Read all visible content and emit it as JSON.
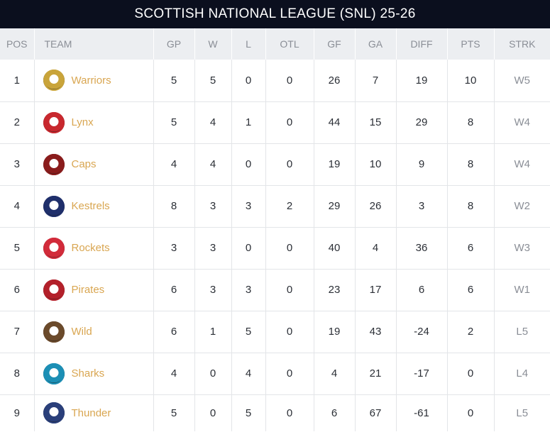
{
  "title": "SCOTTISH NATIONAL LEAGUE (SNL) 25-26",
  "headers": {
    "pos": "POS",
    "team": "TEAM",
    "gp": "GP",
    "w": "W",
    "l": "L",
    "otl": "OTL",
    "gf": "GF",
    "ga": "GA",
    "diff": "DIFF",
    "pts": "PTS",
    "strk": "STRK"
  },
  "rows": [
    {
      "pos": "1",
      "team": "Warriors",
      "gp": "5",
      "w": "5",
      "l": "0",
      "otl": "0",
      "gf": "26",
      "ga": "7",
      "diff": "19",
      "pts": "10",
      "strk": "W5",
      "logo_color": "#c9a43a",
      "logo_icon": "warriors-logo-icon"
    },
    {
      "pos": "2",
      "team": "Lynx",
      "gp": "5",
      "w": "4",
      "l": "1",
      "otl": "0",
      "gf": "44",
      "ga": "15",
      "diff": "29",
      "pts": "8",
      "strk": "W4",
      "logo_color": "#c8282e",
      "logo_icon": "lynx-logo-icon"
    },
    {
      "pos": "3",
      "team": "Caps",
      "gp": "4",
      "w": "4",
      "l": "0",
      "otl": "0",
      "gf": "19",
      "ga": "10",
      "diff": "9",
      "pts": "8",
      "strk": "W4",
      "logo_color": "#8a1c1c",
      "logo_icon": "capitals-logo-icon"
    },
    {
      "pos": "4",
      "team": "Kestrels",
      "gp": "8",
      "w": "3",
      "l": "3",
      "otl": "2",
      "gf": "29",
      "ga": "26",
      "diff": "3",
      "pts": "8",
      "strk": "W2",
      "logo_color": "#1f2f6b",
      "logo_icon": "kestrels-logo-icon"
    },
    {
      "pos": "5",
      "team": "Rockets",
      "gp": "3",
      "w": "3",
      "l": "0",
      "otl": "0",
      "gf": "40",
      "ga": "4",
      "diff": "36",
      "pts": "6",
      "strk": "W3",
      "logo_color": "#d22b3a",
      "logo_icon": "rockets-logo-icon"
    },
    {
      "pos": "6",
      "team": "Pirates",
      "gp": "6",
      "w": "3",
      "l": "3",
      "otl": "0",
      "gf": "23",
      "ga": "17",
      "diff": "6",
      "pts": "6",
      "strk": "W1",
      "logo_color": "#b3202a",
      "logo_icon": "pirates-logo-icon"
    },
    {
      "pos": "7",
      "team": "Wild",
      "gp": "6",
      "w": "1",
      "l": "5",
      "otl": "0",
      "gf": "19",
      "ga": "43",
      "diff": "-24",
      "pts": "2",
      "strk": "L5",
      "logo_color": "#6b4a2b",
      "logo_icon": "wild-logo-icon"
    },
    {
      "pos": "8",
      "team": "Sharks",
      "gp": "4",
      "w": "0",
      "l": "4",
      "otl": "0",
      "gf": "4",
      "ga": "21",
      "diff": "-17",
      "pts": "0",
      "strk": "L4",
      "logo_color": "#1c8fb5",
      "logo_icon": "sharks-logo-icon"
    },
    {
      "pos": "9",
      "team": "Thunder",
      "gp": "5",
      "w": "0",
      "l": "5",
      "otl": "0",
      "gf": "6",
      "ga": "67",
      "diff": "-61",
      "pts": "0",
      "strk": "L5",
      "logo_color": "#2a3f7a",
      "logo_icon": "thunder-logo-icon"
    }
  ]
}
